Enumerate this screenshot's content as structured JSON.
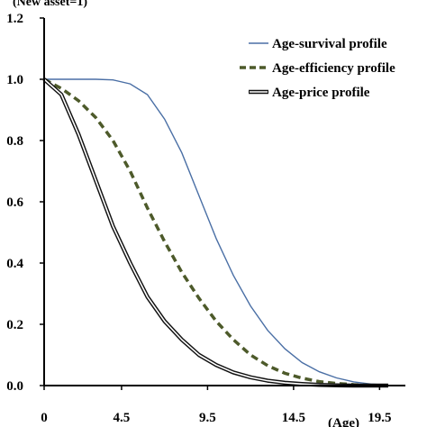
{
  "chart_data": {
    "type": "line",
    "ylabel": "(New asset=1)",
    "xlabel": "(Age)",
    "ylim": [
      0,
      1.2
    ],
    "xlim": [
      0,
      21
    ],
    "y_ticks": [
      "0.0",
      "0.2",
      "0.4",
      "0.6",
      "0.8",
      "1.0",
      "1.2"
    ],
    "x_ticks": [
      "0",
      "4.5",
      "9.5",
      "14.5",
      "19.5"
    ],
    "x_tick_values": [
      0,
      4.5,
      9.5,
      14.5,
      19.5
    ],
    "grid": false,
    "legend_position": "top-right",
    "series": [
      {
        "name": "Age-survival profile",
        "color": "#4a6fa5",
        "style": "solid-thin",
        "x": [
          0,
          1,
          2,
          3,
          4,
          5,
          6,
          7,
          8,
          9,
          10,
          11,
          12,
          13,
          14,
          15,
          16,
          17,
          18,
          19,
          20
        ],
        "y": [
          1.0,
          1.0,
          1.0,
          1.0,
          0.998,
          0.985,
          0.95,
          0.87,
          0.76,
          0.62,
          0.48,
          0.36,
          0.26,
          0.18,
          0.12,
          0.075,
          0.045,
          0.025,
          0.012,
          0.005,
          0.002
        ]
      },
      {
        "name": "Age-efficiency profile",
        "color": "#4d5a2a",
        "style": "dashed-thick",
        "x": [
          0,
          1,
          2,
          3,
          4,
          5,
          6,
          7,
          8,
          9,
          10,
          11,
          12,
          13,
          14,
          15,
          16,
          17,
          18,
          19,
          20
        ],
        "y": [
          1.0,
          0.97,
          0.93,
          0.875,
          0.8,
          0.7,
          0.58,
          0.47,
          0.37,
          0.285,
          0.21,
          0.15,
          0.1,
          0.065,
          0.04,
          0.024,
          0.013,
          0.007,
          0.003,
          0.001,
          0.0
        ]
      },
      {
        "name": "Age-price profile",
        "color": "#111111",
        "style": "double",
        "x": [
          0,
          1,
          2,
          3,
          4,
          5,
          6,
          7,
          8,
          9,
          10,
          11,
          12,
          13,
          14,
          15,
          16,
          17,
          18,
          19,
          20
        ],
        "y": [
          1.0,
          0.95,
          0.82,
          0.67,
          0.52,
          0.4,
          0.29,
          0.21,
          0.15,
          0.1,
          0.067,
          0.043,
          0.027,
          0.016,
          0.009,
          0.005,
          0.002,
          0.001,
          0.0,
          0.0,
          0.0
        ]
      }
    ]
  }
}
